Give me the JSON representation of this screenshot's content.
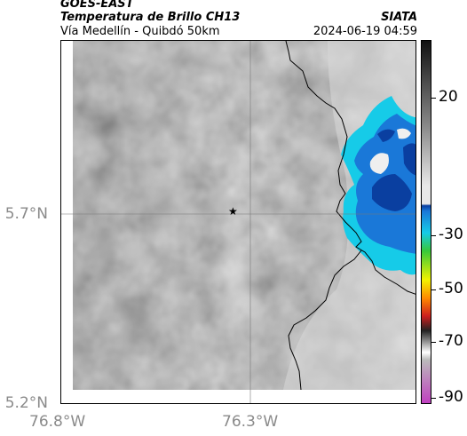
{
  "header": {
    "title_line1": "GOES-EAST",
    "title_line2": "Temperatura de Brillo CH13",
    "title_line3": "Vía Medellín - Quibdó 50km",
    "brand": "SIATA",
    "timestamp": "2024-06-19 04:59"
  },
  "map": {
    "marker_icon": "star-icon",
    "y_labels": [
      "5.7°N",
      "5.2°N"
    ],
    "x_labels": [
      "76.8°W",
      "76.3°W"
    ]
  },
  "colorbar": {
    "ticks": [
      "20",
      "-30",
      "-50",
      "-70",
      "-90"
    ],
    "colors": {
      "black": "#111111",
      "gray_mid": "#8c8c8c",
      "gray_light": "#e8e8e8",
      "deep_blue": "#0a3fa0",
      "blue": "#1a78d8",
      "cyan": "#16cbe8",
      "green": "#37c83a",
      "yellow": "#f2f200",
      "orange": "#ff8a00",
      "red": "#cc1f1f",
      "magenta": "#c040c0"
    }
  }
}
